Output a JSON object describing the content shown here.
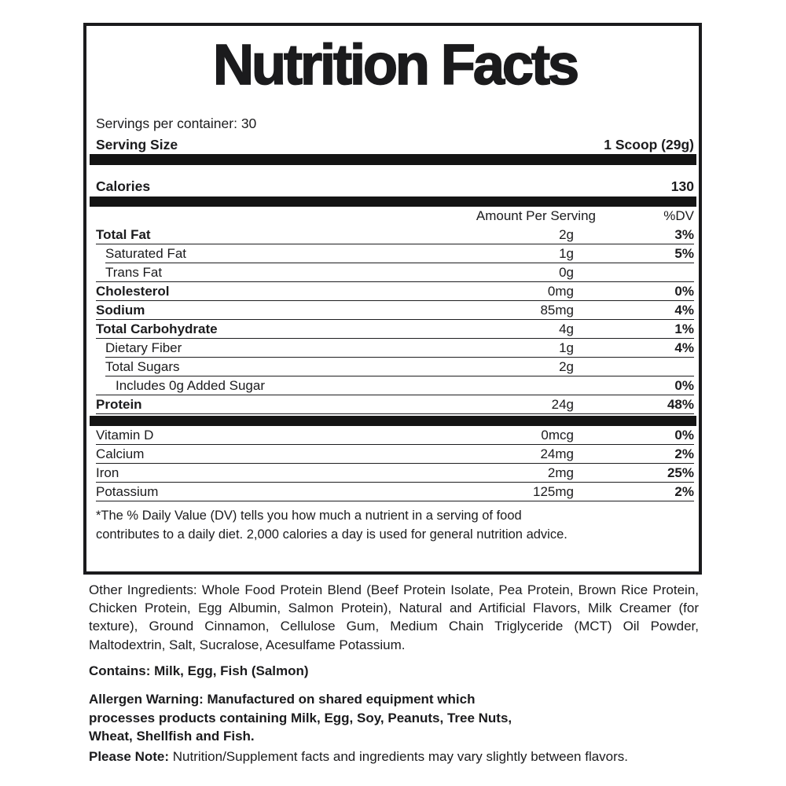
{
  "label": {
    "title": "Nutrition Facts",
    "servings_per_container": "Servings per container: 30",
    "serving_size_label": "Serving Size",
    "serving_size_value": "1 Scoop (29g)",
    "calories_label": "Calories",
    "calories_value": "130",
    "col_amount_header": "Amount Per Serving",
    "col_dv_header": "%DV",
    "rows": [
      {
        "name": "Total Fat",
        "amount": "2g",
        "dv": "3%",
        "bold": true,
        "indent": 0
      },
      {
        "name": "Saturated Fat",
        "amount": "1g",
        "dv": "5%",
        "bold": false,
        "indent": 1
      },
      {
        "name": "Trans Fat",
        "amount": "0g",
        "dv": "",
        "bold": false,
        "indent": 1
      },
      {
        "name": "Cholesterol",
        "amount": "0mg",
        "dv": "0%",
        "bold": true,
        "indent": 0
      },
      {
        "name": "Sodium",
        "amount": "85mg",
        "dv": "4%",
        "bold": true,
        "indent": 0
      },
      {
        "name": "Total Carbohydrate",
        "amount": "4g",
        "dv": "1%",
        "bold": true,
        "indent": 0
      },
      {
        "name": "Dietary Fiber",
        "amount": "1g",
        "dv": "4%",
        "bold": false,
        "indent": 1
      },
      {
        "name": "Total Sugars",
        "amount": "2g",
        "dv": "",
        "bold": false,
        "indent": 1
      },
      {
        "name": "Includes 0g Added Sugar",
        "amount": "",
        "dv": "0%",
        "bold": false,
        "indent": 2
      },
      {
        "name": "Protein",
        "amount": "24g",
        "dv": "48%",
        "bold": true,
        "indent": 0
      }
    ],
    "vitamins": [
      {
        "name": "Vitamin D",
        "amount": "0mcg",
        "dv": "0%"
      },
      {
        "name": "Calcium",
        "amount": "24mg",
        "dv": "2%"
      },
      {
        "name": "Iron",
        "amount": "2mg",
        "dv": "25%"
      },
      {
        "name": "Potassium",
        "amount": "125mg",
        "dv": "2%"
      }
    ],
    "footnote": "*The % Daily Value (DV) tells you how much a nutrient in a serving of food contributes to a daily diet. 2,000 calories a day is used for general nutrition advice."
  },
  "below": {
    "other_ingredients": "Other Ingredients: Whole Food Protein Blend (Beef Protein Isolate, Pea Protein, Brown Rice Protein, Chicken Protein, Egg Albumin, Salmon Protein), Natural and Artificial Flavors, Milk Creamer (for texture), Ground Cinnamon, Cellulose Gum, Medium Chain Triglyceride (MCT) Oil Powder, Maltodextrin, Salt, Sucralose, Acesulfame Potassium.",
    "contains": "Contains: Milk, Egg, Fish (Salmon)",
    "allergen_warning_label": "Allergen Warning:",
    "allergen_warning_text": "Manufactured on shared equipment which processes products containing Milk, Egg, Soy, Peanuts, Tree Nuts, Wheat, Shellfish and Fish.",
    "please_note_label": "Please Note:",
    "please_note_text": "Nutrition/Supplement facts and ingredients may vary slightly between flavors."
  },
  "colors": {
    "text": "#1b1b1d",
    "bar": "#141414",
    "border": "#1b1b1d",
    "background": "#ffffff"
  }
}
